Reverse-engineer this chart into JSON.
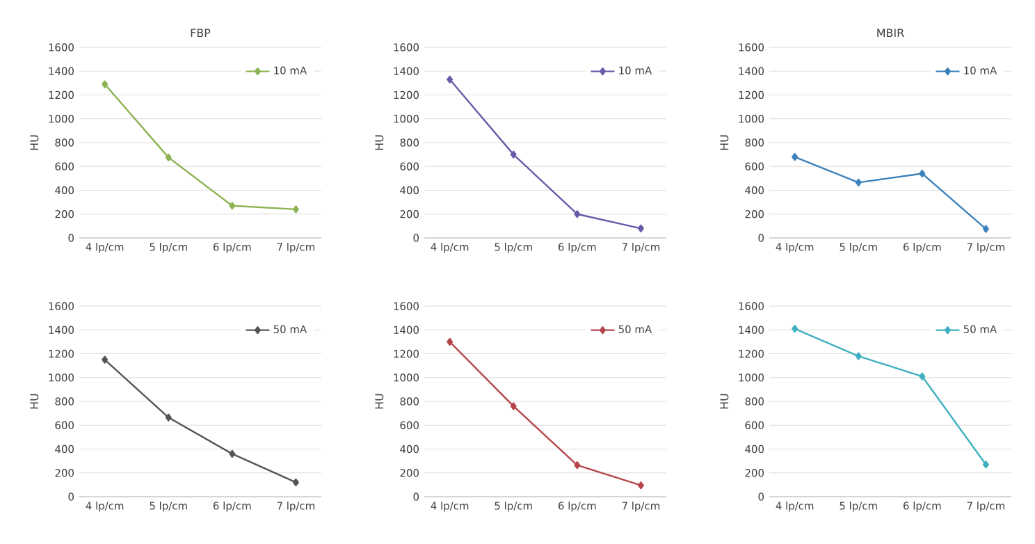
{
  "chart_data": [
    {
      "type": "line",
      "title": "FBP",
      "ylabel": "HU",
      "categories": [
        "4 lp/cm",
        "5 lp/cm",
        "6 lp/cm",
        "7 lp/cm"
      ],
      "ylim": [
        0,
        1600
      ],
      "yticks": [
        0,
        200,
        400,
        600,
        800,
        1000,
        1200,
        1400,
        1600
      ],
      "grid": "y",
      "legend": "top right",
      "marker": "diamond",
      "series": [
        {
          "name": "10 mA",
          "color": "#8db353",
          "values": [
            1290,
            675,
            270,
            240
          ]
        }
      ]
    },
    {
      "type": "line",
      "ylabel": "HU",
      "categories": [
        "4 lp/cm",
        "5 lp/cm",
        "6 lp/cm",
        "7 lp/cm"
      ],
      "ylim": [
        0,
        1600
      ],
      "yticks": [
        0,
        200,
        400,
        600,
        800,
        1000,
        1200,
        1400,
        1600
      ],
      "grid": "y",
      "legend": "top right",
      "marker": "diamond",
      "series": [
        {
          "name": "10 mA",
          "color": "#6a5aa8",
          "values": [
            1330,
            700,
            200,
            80
          ]
        }
      ]
    },
    {
      "type": "line",
      "title": "MBIR",
      "ylabel": "HU",
      "categories": [
        "4 lp/cm",
        "5 lp/cm",
        "6 lp/cm",
        "7 lp/cm"
      ],
      "ylim": [
        0,
        1600
      ],
      "yticks": [
        0,
        200,
        400,
        600,
        800,
        1000,
        1200,
        1400,
        1600
      ],
      "grid": "y",
      "legend": "top right",
      "marker": "diamond",
      "series": [
        {
          "name": "10 mA",
          "color": "#3b82bd",
          "values": [
            680,
            465,
            540,
            75
          ]
        }
      ]
    },
    {
      "type": "line",
      "ylabel": "HU",
      "categories": [
        "4 lp/cm",
        "5 lp/cm",
        "6 lp/cm",
        "7 lp/cm"
      ],
      "ylim": [
        0,
        1600
      ],
      "yticks": [
        0,
        200,
        400,
        600,
        800,
        1000,
        1200,
        1400,
        1600
      ],
      "grid": "y",
      "legend": "top right",
      "marker": "diamond",
      "series": [
        {
          "name": "50 mA",
          "color": "#555555",
          "values": [
            1150,
            665,
            360,
            120
          ]
        }
      ]
    },
    {
      "type": "line",
      "ylabel": "HU",
      "categories": [
        "4 lp/cm",
        "5 lp/cm",
        "6 lp/cm",
        "7 lp/cm"
      ],
      "ylim": [
        0,
        1600
      ],
      "yticks": [
        0,
        200,
        400,
        600,
        800,
        1000,
        1200,
        1400,
        1600
      ],
      "grid": "y",
      "legend": "top right",
      "marker": "diamond",
      "series": [
        {
          "name": "50 mA",
          "color": "#b5454a",
          "values": [
            1300,
            760,
            265,
            95
          ]
        }
      ]
    },
    {
      "type": "line",
      "ylabel": "HU",
      "categories": [
        "4 lp/cm",
        "5 lp/cm",
        "6 lp/cm",
        "7 lp/cm"
      ],
      "ylim": [
        0,
        1600
      ],
      "yticks": [
        0,
        200,
        400,
        600,
        800,
        1000,
        1200,
        1400,
        1600
      ],
      "grid": "y",
      "legend": "top right",
      "marker": "diamond",
      "series": [
        {
          "name": "50 mA",
          "color": "#3fb0c0",
          "values": [
            1410,
            1180,
            1010,
            270
          ]
        }
      ]
    }
  ]
}
